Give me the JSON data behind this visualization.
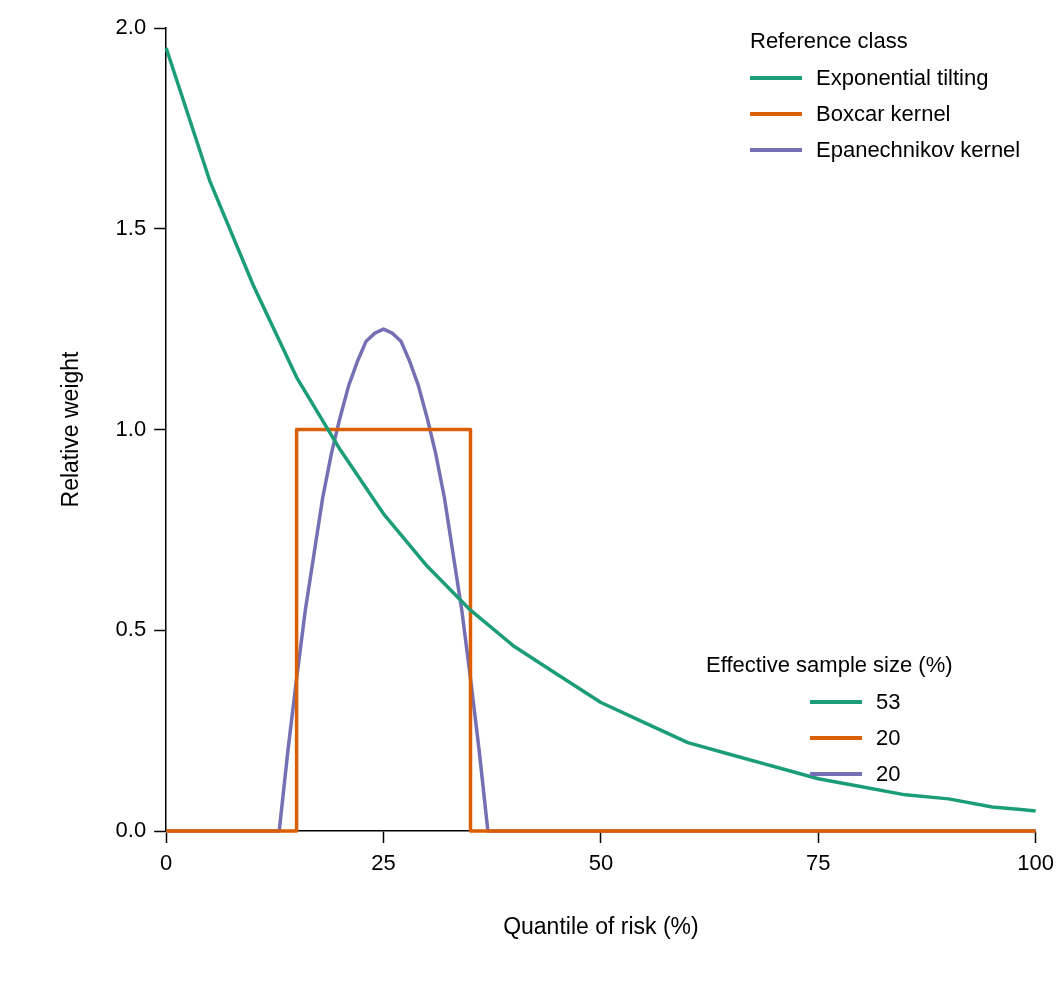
{
  "chart_data": {
    "type": "line",
    "xlabel": "Quantile of risk (%)",
    "ylabel": "Relative weight",
    "xlim": [
      0,
      100
    ],
    "xticks": [
      0,
      25,
      50,
      75,
      100
    ],
    "ylim": [
      0,
      2
    ],
    "yticks": [
      {
        "value": 0,
        "label": "0.0"
      },
      {
        "value": 0.5,
        "label": "0.5"
      },
      {
        "value": 1,
        "label": "1.0"
      },
      {
        "value": 1.5,
        "label": "1.5"
      },
      {
        "value": 2,
        "label": "2.0"
      }
    ],
    "grid": false,
    "legend": "top right",
    "legend_title": "Reference class",
    "marker": "none",
    "line_style": "solid",
    "annotations": [
      "Effective sample size (%)",
      "53",
      "20",
      "20"
    ],
    "series": [
      {
        "name": "Exponential tilting",
        "color": "#1b9e77",
        "x": [
          0,
          5,
          10,
          15,
          20,
          25,
          30,
          35,
          40,
          45,
          50,
          55,
          60,
          65,
          70,
          75,
          80,
          85,
          90,
          95,
          100
        ],
        "values": [
          1.95,
          1.62,
          1.36,
          1.13,
          0.95,
          0.79,
          0.66,
          0.55,
          0.46,
          0.39,
          0.32,
          0.27,
          0.22,
          0.19,
          0.16,
          0.13,
          0.11,
          0.09,
          0.08,
          0.06,
          0.05
        ]
      },
      {
        "name": "Boxcar kernel",
        "color": "#d95f02",
        "x": [
          0,
          15,
          15,
          35,
          35,
          100
        ],
        "values": [
          0,
          0,
          1,
          1,
          0,
          0
        ]
      },
      {
        "name": "Epanechnikov kernel",
        "color": "#7570b3",
        "x": [
          0,
          13,
          14,
          15,
          16,
          17,
          18,
          19,
          20,
          21,
          22,
          23,
          24,
          25,
          26,
          27,
          28,
          29,
          30,
          31,
          32,
          33,
          34,
          35,
          36,
          37,
          100
        ],
        "values": [
          0,
          0,
          0.2,
          0.38,
          0.55,
          0.69,
          0.83,
          0.94,
          1.03,
          1.11,
          1.17,
          1.22,
          1.24,
          1.25,
          1.24,
          1.22,
          1.17,
          1.11,
          1.03,
          0.94,
          0.83,
          0.69,
          0.55,
          0.38,
          0.2,
          0,
          0
        ]
      }
    ]
  }
}
